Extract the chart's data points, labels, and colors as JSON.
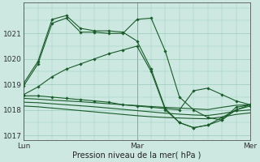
{
  "background_color": "#cce8e0",
  "plot_bg_color": "#cce8e0",
  "grid_color": "#99ccbb",
  "line_color": "#1a5c2a",
  "marker_color": "#1a5c2a",
  "xlabel": "Pression niveau de la mer( hPa )",
  "ylim": [
    1016.8,
    1022.2
  ],
  "yticks": [
    1017,
    1018,
    1019,
    1020,
    1021
  ],
  "xtick_labels": [
    "Lun",
    "Mar",
    "Mer"
  ],
  "xtick_positions": [
    0,
    24,
    48
  ],
  "total_hours": 48,
  "series": [
    {
      "x": [
        0,
        3,
        6,
        9,
        12,
        15,
        18,
        21,
        24,
        27,
        30,
        33,
        36,
        39,
        42,
        45,
        48
      ],
      "y": [
        1018.95,
        1019.8,
        1021.4,
        1021.6,
        1021.05,
        1021.05,
        1021.0,
        1021.0,
        1021.55,
        1021.6,
        1020.3,
        1018.5,
        1018.0,
        1017.7,
        1017.6,
        1018.1,
        1018.2
      ],
      "marker": true
    },
    {
      "x": [
        0,
        3,
        6,
        9,
        12,
        15,
        18,
        21,
        24,
        27,
        30,
        33,
        36,
        39,
        42,
        45,
        48
      ],
      "y": [
        1019.05,
        1019.9,
        1021.55,
        1021.7,
        1021.2,
        1021.1,
        1021.1,
        1021.05,
        1020.7,
        1019.6,
        1018.05,
        1017.5,
        1017.3,
        1017.4,
        1017.6,
        1018.0,
        1018.15
      ],
      "marker": true
    },
    {
      "x": [
        0,
        3,
        6,
        9,
        12,
        15,
        18,
        21,
        24,
        27,
        30,
        33,
        36,
        39,
        42,
        45,
        48
      ],
      "y": [
        1018.6,
        1018.9,
        1019.3,
        1019.6,
        1019.8,
        1020.0,
        1020.2,
        1020.35,
        1020.5,
        1019.5,
        1018.0,
        1017.5,
        1017.3,
        1017.4,
        1017.7,
        1018.0,
        1018.2
      ],
      "marker": true
    },
    {
      "x": [
        0,
        3,
        6,
        9,
        12,
        15,
        18,
        21,
        24,
        27,
        30,
        33,
        36,
        39,
        42,
        45,
        48
      ],
      "y": [
        1018.55,
        1018.55,
        1018.5,
        1018.45,
        1018.4,
        1018.35,
        1018.3,
        1018.2,
        1018.15,
        1018.1,
        1018.05,
        1018.0,
        1018.75,
        1018.85,
        1018.6,
        1018.35,
        1018.2
      ],
      "marker": true
    },
    {
      "x": [
        0,
        3,
        6,
        9,
        12,
        15,
        18,
        21,
        24,
        27,
        30,
        33,
        36,
        39,
        42,
        45,
        48
      ],
      "y": [
        1018.45,
        1018.42,
        1018.38,
        1018.35,
        1018.32,
        1018.28,
        1018.24,
        1018.2,
        1018.17,
        1018.13,
        1018.1,
        1018.07,
        1018.04,
        1018.01,
        1018.1,
        1018.18,
        1018.2
      ],
      "marker": false
    },
    {
      "x": [
        0,
        3,
        6,
        9,
        12,
        15,
        18,
        21,
        24,
        27,
        30,
        33,
        36,
        39,
        42,
        45,
        48
      ],
      "y": [
        1018.3,
        1018.28,
        1018.24,
        1018.2,
        1018.16,
        1018.12,
        1018.07,
        1018.02,
        1017.97,
        1017.92,
        1017.87,
        1017.83,
        1017.8,
        1017.78,
        1017.85,
        1017.95,
        1018.0
      ],
      "marker": false
    },
    {
      "x": [
        0,
        3,
        6,
        9,
        12,
        15,
        18,
        21,
        24,
        27,
        30,
        33,
        36,
        39,
        42,
        45,
        48
      ],
      "y": [
        1018.15,
        1018.12,
        1018.07,
        1018.02,
        1017.97,
        1017.92,
        1017.87,
        1017.82,
        1017.77,
        1017.73,
        1017.7,
        1017.68,
        1017.66,
        1017.65,
        1017.72,
        1017.82,
        1017.88
      ],
      "marker": false
    }
  ]
}
